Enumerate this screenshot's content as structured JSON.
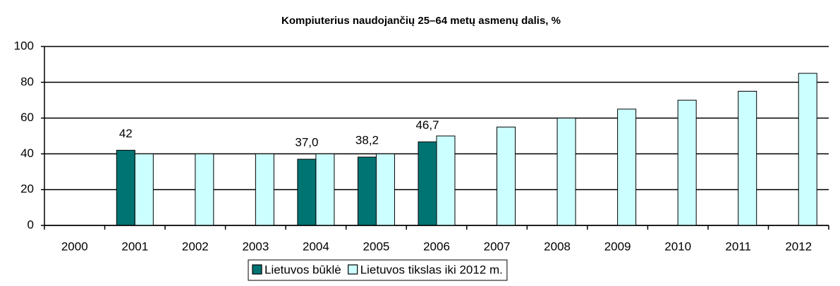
{
  "chart_data": {
    "type": "bar",
    "title": "Kompiuterius naudojančių 25–64 metų asmenų dalis, %",
    "categories": [
      "2000",
      "2001",
      "2002",
      "2003",
      "2004",
      "2005",
      "2006",
      "2007",
      "2008",
      "2009",
      "2010",
      "2011",
      "2012"
    ],
    "series": [
      {
        "name": "Lietuvos būklė",
        "color": "#007373",
        "values": [
          null,
          42,
          null,
          null,
          37.0,
          38.2,
          46.7,
          null,
          null,
          null,
          null,
          null,
          null
        ],
        "value_labels": [
          null,
          "42",
          null,
          null,
          "37,0",
          "38,2",
          "46,7",
          null,
          null,
          null,
          null,
          null,
          null
        ]
      },
      {
        "name": "Lietuvos tikslas iki 2012 m.",
        "color": "#ccffff",
        "values": [
          null,
          40,
          40,
          40,
          40,
          40,
          50,
          55,
          60,
          65,
          70,
          75,
          85
        ]
      }
    ],
    "ylim": [
      0,
      100
    ],
    "yticks": [
      0,
      20,
      40,
      60,
      80,
      100
    ],
    "grid": true,
    "legend": "bottom"
  }
}
